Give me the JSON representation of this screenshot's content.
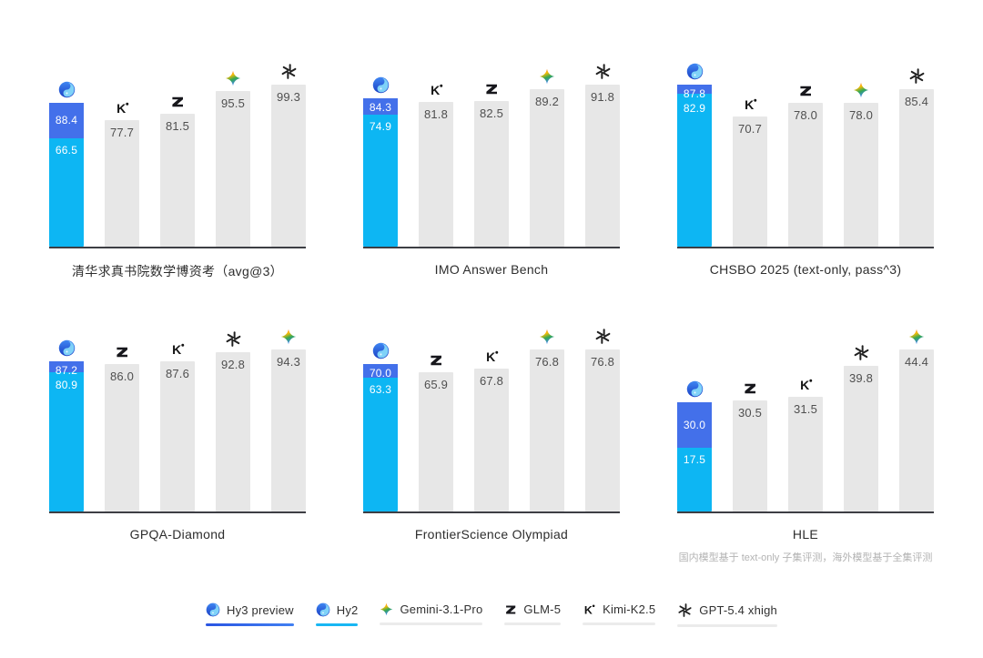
{
  "page": {
    "background": "#ffffff"
  },
  "colors": {
    "hy3_blue": "#4370ea",
    "hy2_cyan": "#0db6f3",
    "bar_gray": "#e7e7e7",
    "axis_line": "#3d3e44",
    "value_text": "#4f4f4f",
    "white_value_text": "#ffffff",
    "title_text": "#2d2d2d",
    "footnote_text": "#b3b3b3",
    "legend_underline_hy3": "linear-gradient(90deg, #2a55e2, #4180f2)",
    "legend_underline_hy2": "#19b7f3",
    "legend_underline_neutral": "#ebebeb"
  },
  "chart_data": [
    {
      "type": "bar",
      "title": "清华求真书院数学博资考（avg@3）",
      "bars": [
        {
          "icon": "hunyuan",
          "type": "stacked",
          "series_names": [
            "Hy3 preview",
            "Hy2"
          ],
          "values": [
            88.4,
            66.5
          ],
          "labels": [
            "88.4",
            "66.5"
          ]
        },
        {
          "icon": "kimi",
          "series": "Kimi-K2.5",
          "value": 77.7,
          "label": "77.7"
        },
        {
          "icon": "glm",
          "series": "GLM-5",
          "value": 81.5,
          "label": "81.5"
        },
        {
          "icon": "gemini",
          "series": "Gemini-3.1-Pro",
          "value": 95.5,
          "label": "95.5"
        },
        {
          "icon": "openai",
          "series": "GPT-5.4 xhigh",
          "value": 99.3,
          "label": "99.3"
        }
      ]
    },
    {
      "type": "bar",
      "title": "IMO Answer Bench",
      "bars": [
        {
          "icon": "hunyuan",
          "type": "stacked",
          "series_names": [
            "Hy3 preview",
            "Hy2"
          ],
          "values": [
            84.3,
            74.9
          ],
          "labels": [
            "84.3",
            "74.9"
          ]
        },
        {
          "icon": "kimi",
          "series": "Kimi-K2.5",
          "value": 81.8,
          "label": "81.8"
        },
        {
          "icon": "glm",
          "series": "GLM-5",
          "value": 82.5,
          "label": "82.5"
        },
        {
          "icon": "gemini",
          "series": "Gemini-3.1-Pro",
          "value": 89.2,
          "label": "89.2"
        },
        {
          "icon": "openai",
          "series": "GPT-5.4 xhigh",
          "value": 91.8,
          "label": "91.8"
        }
      ]
    },
    {
      "type": "bar",
      "title": "CHSBO 2025 (text-only, pass^3)",
      "bars": [
        {
          "icon": "hunyuan",
          "type": "stacked",
          "series_names": [
            "Hy3 preview",
            "Hy2"
          ],
          "values": [
            87.8,
            82.9
          ],
          "labels": [
            "87.8",
            "82.9"
          ]
        },
        {
          "icon": "kimi",
          "series": "Kimi-K2.5",
          "value": 70.7,
          "label": "70.7"
        },
        {
          "icon": "glm",
          "series": "GLM-5",
          "value": 78.0,
          "label": "78.0"
        },
        {
          "icon": "gemini",
          "series": "Gemini-3.1-Pro",
          "value": 78.0,
          "label": "78.0"
        },
        {
          "icon": "openai",
          "series": "GPT-5.4 xhigh",
          "value": 85.4,
          "label": "85.4"
        }
      ]
    },
    {
      "type": "bar",
      "title": "GPQA-Diamond",
      "bars": [
        {
          "icon": "hunyuan",
          "type": "stacked",
          "series_names": [
            "Hy3 preview",
            "Hy2"
          ],
          "values": [
            87.2,
            80.9
          ],
          "labels": [
            "87.2",
            "80.9"
          ]
        },
        {
          "icon": "glm",
          "series": "GLM-5",
          "value": 86.0,
          "label": "86.0"
        },
        {
          "icon": "kimi",
          "series": "Kimi-K2.5",
          "value": 87.6,
          "label": "87.6"
        },
        {
          "icon": "openai",
          "series": "GPT-5.4 xhigh",
          "value": 92.8,
          "label": "92.8"
        },
        {
          "icon": "gemini",
          "series": "Gemini-3.1-Pro",
          "value": 94.3,
          "label": "94.3"
        }
      ]
    },
    {
      "type": "bar",
      "title": "FrontierScience Olympiad",
      "bars": [
        {
          "icon": "hunyuan",
          "type": "stacked",
          "series_names": [
            "Hy3 preview",
            "Hy2"
          ],
          "values": [
            70.0,
            63.3
          ],
          "labels": [
            "70.0",
            "63.3"
          ]
        },
        {
          "icon": "glm",
          "series": "GLM-5",
          "value": 65.9,
          "label": "65.9"
        },
        {
          "icon": "kimi",
          "series": "Kimi-K2.5",
          "value": 67.8,
          "label": "67.8"
        },
        {
          "icon": "gemini",
          "series": "Gemini-3.1-Pro",
          "value": 76.8,
          "label": "76.8"
        },
        {
          "icon": "openai",
          "series": "GPT-5.4 xhigh",
          "value": 76.8,
          "label": "76.8"
        }
      ]
    },
    {
      "type": "bar",
      "title": "HLE",
      "footnote": "国内模型基于 text-only 子集评测，海外模型基于全集评测",
      "bars": [
        {
          "icon": "hunyuan",
          "type": "stacked",
          "series_names": [
            "Hy3 preview",
            "Hy2"
          ],
          "values": [
            30.0,
            17.5
          ],
          "labels": [
            "30.0",
            "17.5"
          ]
        },
        {
          "icon": "glm",
          "series": "GLM-5",
          "value": 30.5,
          "label": "30.5"
        },
        {
          "icon": "kimi",
          "series": "Kimi-K2.5",
          "value": 31.5,
          "label": "31.5"
        },
        {
          "icon": "openai",
          "series": "GPT-5.4 xhigh",
          "value": 39.8,
          "label": "39.8"
        },
        {
          "icon": "gemini",
          "series": "Gemini-3.1-Pro",
          "value": 44.4,
          "label": "44.4"
        }
      ]
    }
  ],
  "legend": {
    "position": "bottom-center",
    "items": [
      {
        "icon": "hunyuan",
        "label": "Hy3 preview",
        "underline": "linear-gradient(90deg, #2a55e2, #4180f2)"
      },
      {
        "icon": "hunyuan",
        "label": "Hy2",
        "underline": "#19b7f3"
      },
      {
        "icon": "gemini",
        "label": "Gemini-3.1-Pro",
        "underline": "#ebebeb"
      },
      {
        "icon": "glm",
        "label": "GLM-5",
        "underline": "#ebebeb"
      },
      {
        "icon": "kimi",
        "label": "Kimi-K2.5",
        "underline": "#ebebeb"
      },
      {
        "icon": "openai",
        "label": "GPT-5.4 xhigh",
        "underline": "#ebebeb"
      }
    ]
  }
}
